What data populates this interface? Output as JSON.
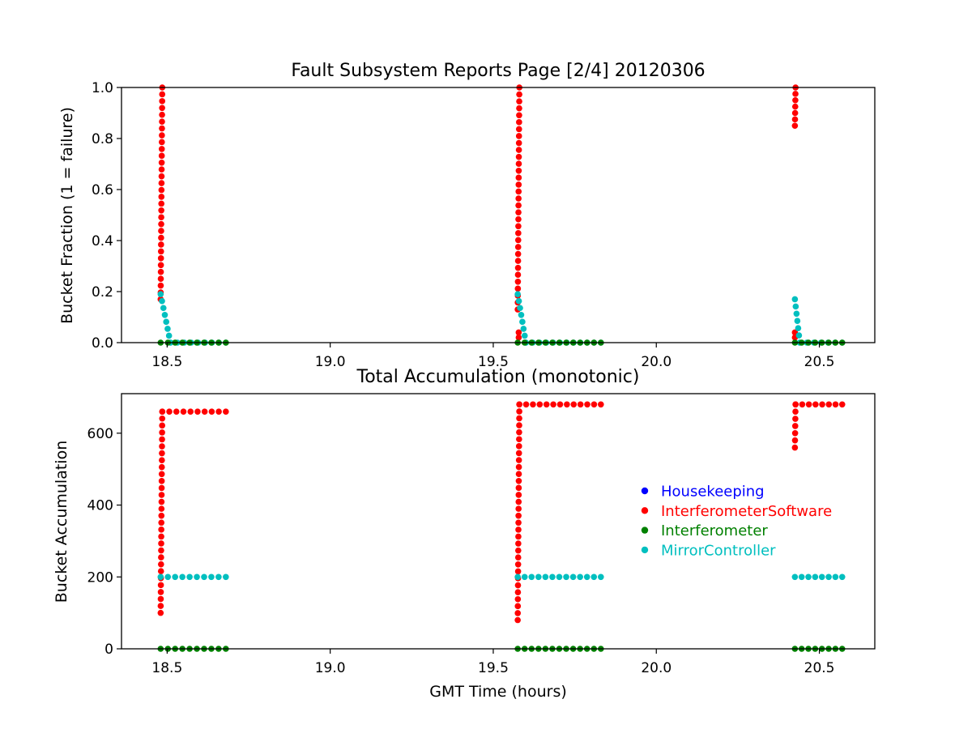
{
  "chart_data": [
    {
      "type": "scatter",
      "title": "Fault Subsystem Reports Page [2/4] 20120306",
      "xlabel": "",
      "ylabel": "Bucket Fraction (1 = failure)",
      "xlim": [
        18.36,
        20.67
      ],
      "ylim": [
        0,
        1.0
      ],
      "xticks": [
        "18.5",
        "19.0",
        "19.5",
        "20.0",
        "20.5"
      ],
      "xtick_values": [
        18.5,
        19.0,
        19.5,
        20.0,
        20.5
      ],
      "yticks": [
        "0.0",
        "0.2",
        "0.4",
        "0.6",
        "0.8",
        "1.0"
      ],
      "ytick_values": [
        0,
        0.2,
        0.4,
        0.6,
        0.8,
        1.0
      ],
      "grid": false,
      "series": [
        {
          "name": "InterferometerSoftware",
          "color": "#ff0000",
          "segments": [
            {
              "x": [
                18.48,
                18.485
              ],
              "y": [
                0.17,
                1.0
              ],
              "flat_to": 18.485
            },
            {
              "x": [
                19.575,
                19.58
              ],
              "y": [
                0.13,
                1.0
              ],
              "flat_to": 19.58
            },
            {
              "x": [
                20.425,
                20.427
              ],
              "y": [
                0.85,
                1.0
              ],
              "flat_to": 20.427
            }
          ],
          "extra_points": [
            [
              19.578,
              0.04
            ],
            [
              19.578,
              0.02
            ],
            [
              20.425,
              0.04
            ],
            [
              20.425,
              0.02
            ]
          ]
        },
        {
          "name": "MirrorController",
          "color": "#00bfbf",
          "segments": [
            {
              "x": [
                18.48,
                18.51,
                18.68
              ],
              "y": [
                0.19,
                0.0,
                0.0
              ]
            },
            {
              "x": [
                19.575,
                19.6,
                19.83
              ],
              "y": [
                0.19,
                0.0,
                0.0
              ]
            },
            {
              "x": [
                20.425,
                20.44,
                20.57
              ],
              "y": [
                0.17,
                0.0,
                0.0
              ]
            }
          ]
        },
        {
          "name": "Interferometer",
          "color": "#008000",
          "segments": [
            {
              "x": [
                18.48,
                18.68
              ],
              "y": [
                0,
                0
              ]
            },
            {
              "x": [
                19.575,
                19.83
              ],
              "y": [
                0,
                0
              ]
            },
            {
              "x": [
                20.425,
                20.57
              ],
              "y": [
                0,
                0
              ]
            }
          ]
        }
      ]
    },
    {
      "type": "scatter",
      "title": "Total Accumulation (monotonic)",
      "xlabel": "GMT Time (hours)",
      "ylabel": "Bucket Accumulation",
      "xlim": [
        18.36,
        20.67
      ],
      "ylim": [
        0,
        710
      ],
      "xticks": [
        "18.5",
        "19.0",
        "19.5",
        "20.0",
        "20.5"
      ],
      "xtick_values": [
        18.5,
        19.0,
        19.5,
        20.0,
        20.5
      ],
      "yticks": [
        "0",
        "200",
        "400",
        "600"
      ],
      "ytick_values": [
        0,
        200,
        400,
        600
      ],
      "grid": false,
      "legend_position": "right",
      "legend": [
        {
          "label": "Housekeeping",
          "color": "#0000ff"
        },
        {
          "label": "InterferometerSoftware",
          "color": "#ff0000"
        },
        {
          "label": "Interferometer",
          "color": "#008000"
        },
        {
          "label": "MirrorController",
          "color": "#00bfbf"
        }
      ],
      "series": [
        {
          "name": "InterferometerSoftware",
          "color": "#ff0000",
          "segments": [
            {
              "x": [
                18.48,
                18.485,
                18.68
              ],
              "y": [
                100,
                660,
                660
              ]
            },
            {
              "x": [
                19.575,
                19.58,
                19.83
              ],
              "y": [
                80,
                680,
                680
              ]
            },
            {
              "x": [
                20.425,
                20.427,
                20.57
              ],
              "y": [
                560,
                680,
                680
              ]
            }
          ]
        },
        {
          "name": "MirrorController",
          "color": "#00bfbf",
          "segments": [
            {
              "x": [
                18.48,
                18.68
              ],
              "y": [
                200,
                200
              ]
            },
            {
              "x": [
                19.575,
                19.83
              ],
              "y": [
                200,
                200
              ]
            },
            {
              "x": [
                20.425,
                20.57
              ],
              "y": [
                200,
                200
              ]
            }
          ]
        },
        {
          "name": "Interferometer",
          "color": "#008000",
          "segments": [
            {
              "x": [
                18.48,
                18.68
              ],
              "y": [
                0,
                0
              ]
            },
            {
              "x": [
                19.575,
                19.83
              ],
              "y": [
                0,
                0
              ]
            },
            {
              "x": [
                20.425,
                20.57
              ],
              "y": [
                0,
                0
              ]
            }
          ]
        }
      ]
    }
  ]
}
